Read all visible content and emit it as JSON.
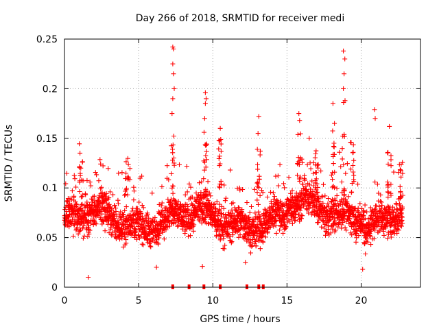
{
  "chart_data": {
    "type": "scatter",
    "title": "Day 266 of 2018, SRMTID for receiver medi",
    "xlabel": "GPS time / hours",
    "ylabel": "SRMTID / TECUs",
    "xlim": [
      0,
      24
    ],
    "ylim": [
      0,
      0.25
    ],
    "xticks": [
      {
        "value": 0,
        "label": "0"
      },
      {
        "value": 5,
        "label": "5"
      },
      {
        "value": 10,
        "label": "10"
      },
      {
        "value": 15,
        "label": "15"
      },
      {
        "value": 20,
        "label": "20"
      }
    ],
    "yticks": [
      {
        "value": 0,
        "label": "0"
      },
      {
        "value": 0.05,
        "label": "0.05"
      },
      {
        "value": 0.1,
        "label": "0.1"
      },
      {
        "value": 0.15,
        "label": "0.15"
      },
      {
        "value": 0.2,
        "label": "0.2"
      },
      {
        "value": 0.25,
        "label": "0.25"
      }
    ],
    "grid": true,
    "marker": "+",
    "series_color": "#ff0000",
    "x_range_of_data": [
      0,
      22.8
    ],
    "baseline_markers_x": [
      7.3,
      8.4,
      9.4,
      10.5,
      12.3,
      13.1,
      13.4
    ],
    "spikes": [
      {
        "x": 7.3,
        "y": 0.242
      },
      {
        "x": 7.35,
        "y": 0.24
      },
      {
        "x": 7.3,
        "y": 0.225
      },
      {
        "x": 7.35,
        "y": 0.215
      },
      {
        "x": 7.4,
        "y": 0.2
      },
      {
        "x": 7.3,
        "y": 0.19
      },
      {
        "x": 7.25,
        "y": 0.175
      },
      {
        "x": 9.5,
        "y": 0.196
      },
      {
        "x": 9.55,
        "y": 0.19
      },
      {
        "x": 9.5,
        "y": 0.185
      },
      {
        "x": 9.45,
        "y": 0.17
      },
      {
        "x": 10.5,
        "y": 0.16
      },
      {
        "x": 13.1,
        "y": 0.172
      },
      {
        "x": 13.05,
        "y": 0.155
      },
      {
        "x": 15.8,
        "y": 0.175
      },
      {
        "x": 15.85,
        "y": 0.168
      },
      {
        "x": 16.5,
        "y": 0.15
      },
      {
        "x": 18.1,
        "y": 0.185
      },
      {
        "x": 18.2,
        "y": 0.165
      },
      {
        "x": 18.8,
        "y": 0.238
      },
      {
        "x": 18.9,
        "y": 0.23
      },
      {
        "x": 18.85,
        "y": 0.215
      },
      {
        "x": 18.8,
        "y": 0.2
      },
      {
        "x": 20.9,
        "y": 0.179
      },
      {
        "x": 20.95,
        "y": 0.17
      },
      {
        "x": 21.9,
        "y": 0.162
      },
      {
        "x": 1.6,
        "y": 0.01
      },
      {
        "x": 6.2,
        "y": 0.02
      },
      {
        "x": 9.3,
        "y": 0.021
      },
      {
        "x": 12.2,
        "y": 0.025
      },
      {
        "x": 20.1,
        "y": 0.018
      }
    ]
  }
}
